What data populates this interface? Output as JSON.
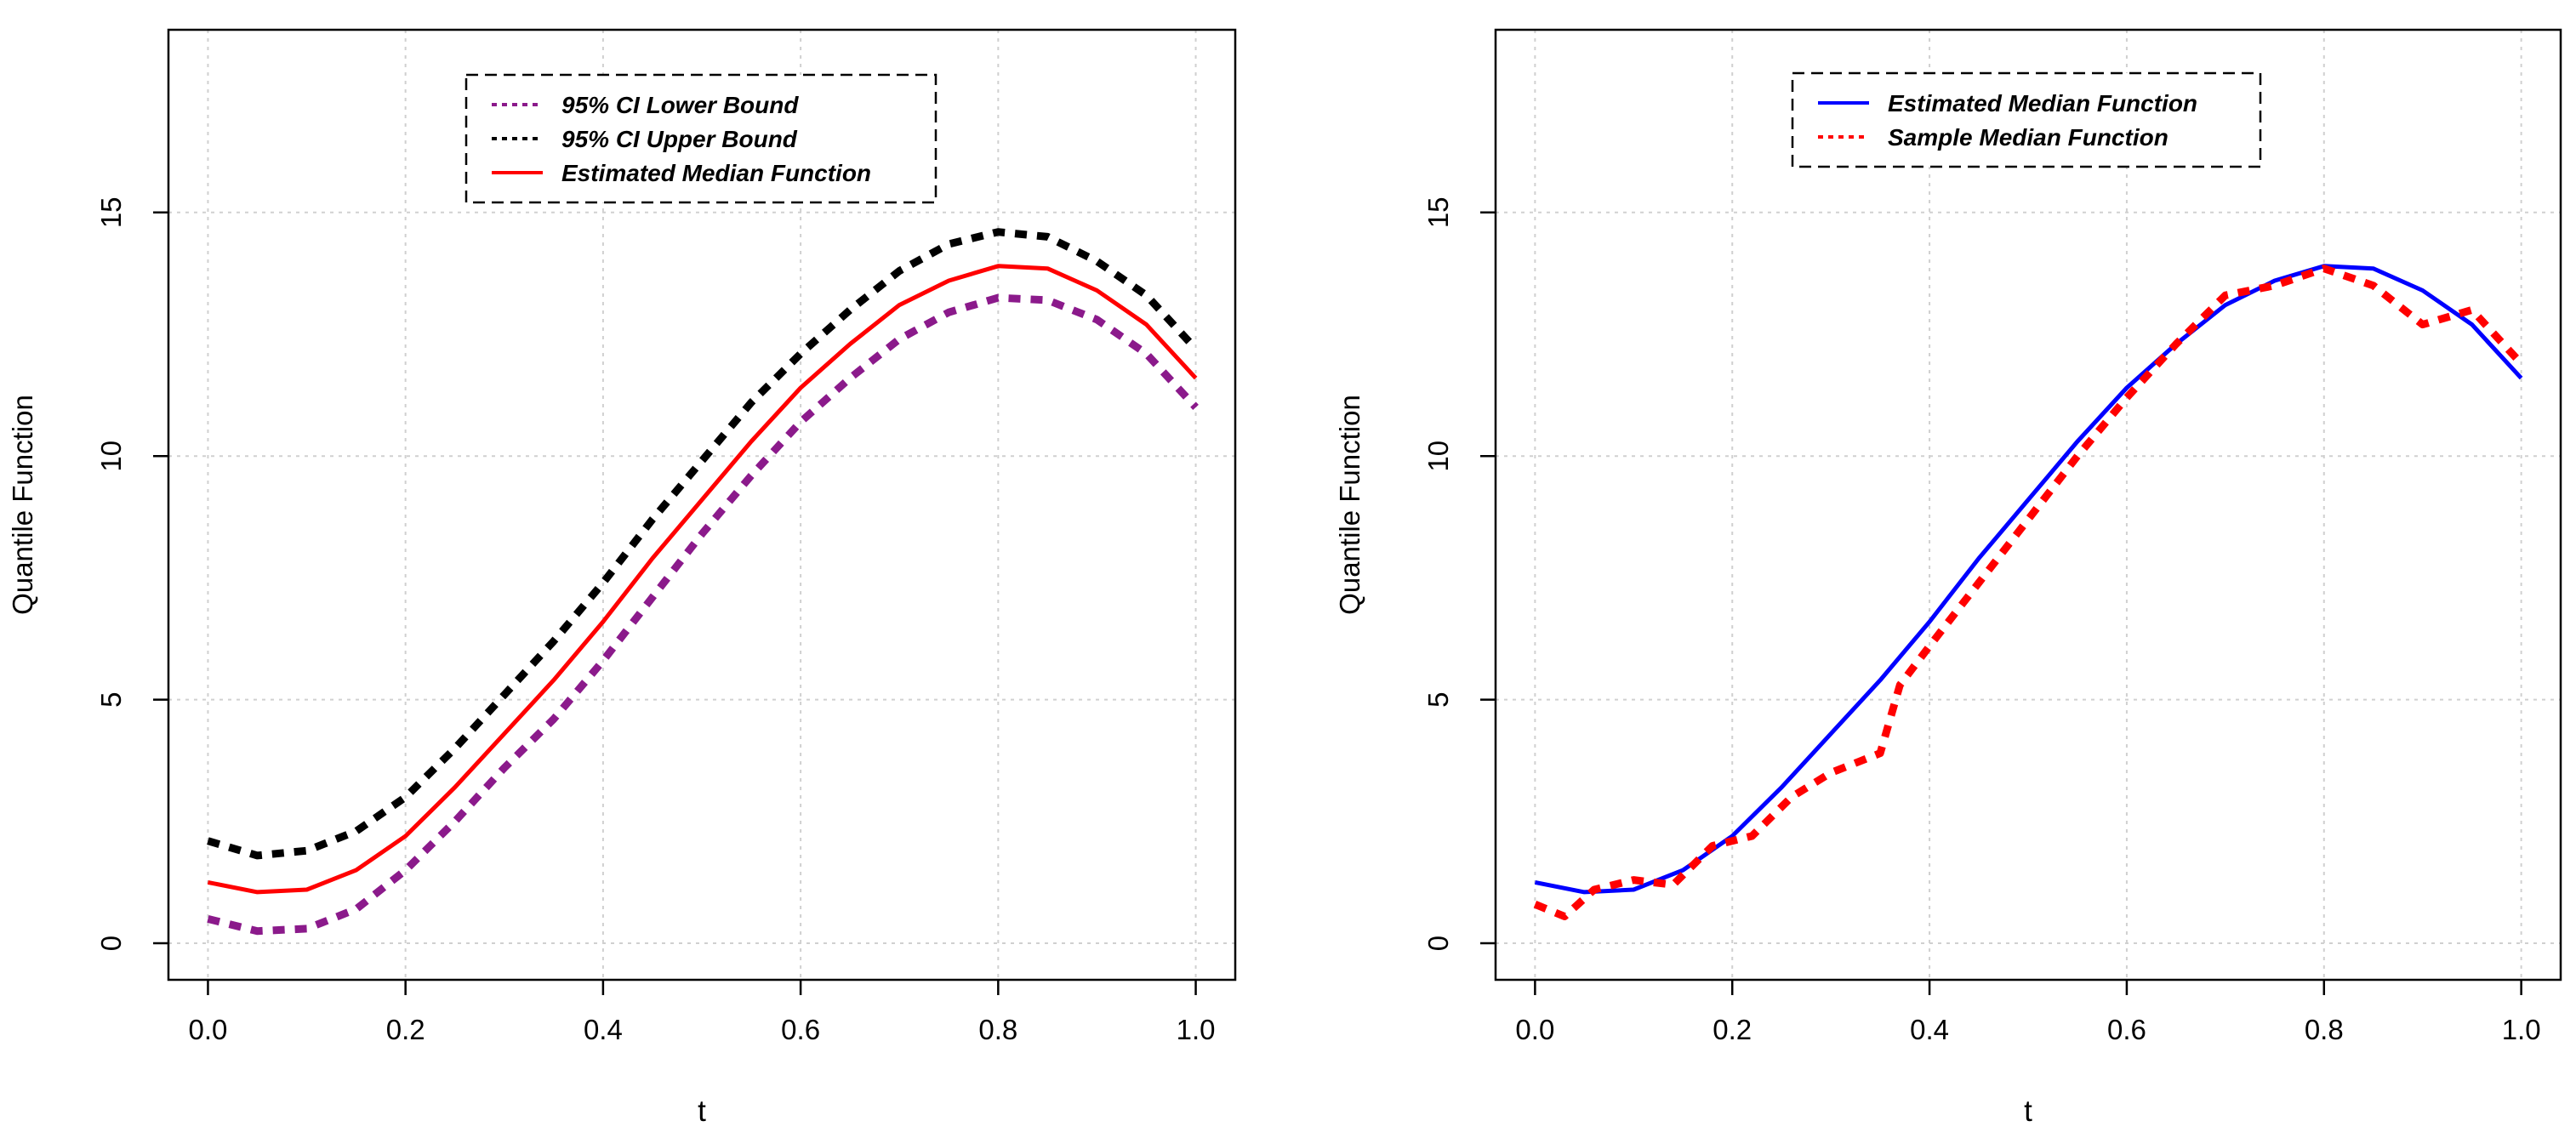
{
  "chart_data": [
    {
      "type": "line",
      "title": "",
      "xlabel": "t",
      "ylabel": "Quantile Function",
      "xlim": [
        -0.04,
        1.04
      ],
      "ylim": [
        -0.75,
        18.75
      ],
      "xticks": [
        "0.0",
        "0.2",
        "0.4",
        "0.6",
        "0.8",
        "1.0"
      ],
      "yticks": [
        "0",
        "5",
        "10",
        "15"
      ],
      "grid": true,
      "legend_position": "top-center",
      "x": [
        0.0,
        0.05,
        0.1,
        0.15,
        0.2,
        0.25,
        0.3,
        0.35,
        0.4,
        0.45,
        0.5,
        0.55,
        0.6,
        0.65,
        0.7,
        0.75,
        0.8,
        0.85,
        0.9,
        0.95,
        1.0
      ],
      "series": [
        {
          "name": "95% CI Lower Bound",
          "color": "#8B1A8B",
          "style": "dotted",
          "values": [
            0.5,
            0.25,
            0.3,
            0.7,
            1.5,
            2.5,
            3.6,
            4.6,
            5.8,
            7.1,
            8.4,
            9.6,
            10.7,
            11.6,
            12.4,
            12.95,
            13.25,
            13.2,
            12.8,
            12.1,
            11.0
          ]
        },
        {
          "name": "95% CI Upper Bound",
          "color": "#000000",
          "style": "dotted",
          "values": [
            2.1,
            1.8,
            1.9,
            2.3,
            3.0,
            4.0,
            5.1,
            6.2,
            7.4,
            8.7,
            9.9,
            11.1,
            12.1,
            13.0,
            13.8,
            14.35,
            14.6,
            14.5,
            14.0,
            13.3,
            12.2
          ]
        },
        {
          "name": "Estimated Median Function",
          "color": "#FF0000",
          "style": "solid",
          "values": [
            1.25,
            1.05,
            1.1,
            1.5,
            2.2,
            3.2,
            4.3,
            5.4,
            6.6,
            7.9,
            9.1,
            10.3,
            11.4,
            12.3,
            13.1,
            13.6,
            13.9,
            13.85,
            13.4,
            12.7,
            11.6
          ]
        }
      ]
    },
    {
      "type": "line",
      "title": "",
      "xlabel": "t",
      "ylabel": "Quantile Function",
      "xlim": [
        -0.04,
        1.04
      ],
      "ylim": [
        -0.75,
        18.75
      ],
      "xticks": [
        "0.0",
        "0.2",
        "0.4",
        "0.6",
        "0.8",
        "1.0"
      ],
      "yticks": [
        "0",
        "5",
        "10",
        "15"
      ],
      "grid": true,
      "legend_position": "top-center",
      "series": [
        {
          "name": "Estimated Median Function",
          "color": "#0000FF",
          "style": "solid",
          "x": [
            0.0,
            0.05,
            0.1,
            0.15,
            0.2,
            0.25,
            0.3,
            0.35,
            0.4,
            0.45,
            0.5,
            0.55,
            0.6,
            0.65,
            0.7,
            0.75,
            0.8,
            0.85,
            0.9,
            0.95,
            1.0
          ],
          "values": [
            1.25,
            1.05,
            1.1,
            1.5,
            2.2,
            3.2,
            4.3,
            5.4,
            6.6,
            7.9,
            9.1,
            10.3,
            11.4,
            12.3,
            13.1,
            13.6,
            13.9,
            13.85,
            13.4,
            12.7,
            11.6
          ]
        },
        {
          "name": "Sample Median Function",
          "color": "#FF0000",
          "style": "dotted",
          "x": [
            0.0,
            0.03,
            0.06,
            0.1,
            0.14,
            0.18,
            0.22,
            0.26,
            0.3,
            0.35,
            0.37,
            0.4,
            0.45,
            0.5,
            0.55,
            0.6,
            0.65,
            0.7,
            0.75,
            0.8,
            0.85,
            0.9,
            0.95,
            1.0
          ],
          "values": [
            0.8,
            0.55,
            1.1,
            1.3,
            1.2,
            2.0,
            2.2,
            3.0,
            3.5,
            3.9,
            5.3,
            6.1,
            7.4,
            8.7,
            10.0,
            11.2,
            12.3,
            13.3,
            13.5,
            13.85,
            13.5,
            12.7,
            13.0,
            11.9
          ]
        }
      ]
    }
  ]
}
